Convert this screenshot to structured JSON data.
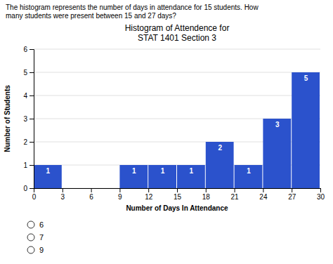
{
  "chart_data": {
    "type": "histogram",
    "title": "Histogram of Attendence for\nSTAT 1401 Section 3",
    "x_label": "Number of Days In Attendance",
    "y_label": "Number of Students",
    "bins": [
      0,
      3,
      6,
      9,
      12,
      15,
      18,
      21,
      24,
      27,
      30
    ],
    "values": [
      1,
      0,
      0,
      1,
      1,
      1,
      2,
      1,
      3,
      5
    ],
    "color": "#2B52CC",
    "xlim": [
      0,
      30
    ],
    "xticks": [
      0,
      3,
      6,
      9,
      12,
      15,
      18,
      21,
      24,
      27,
      30
    ],
    "ylim": [
      0,
      6
    ],
    "yticks": [
      0,
      1,
      2,
      3,
      4,
      5,
      6
    ],
    "grid": true,
    "data_labels": true,
    "annotations": [
      [
        "The histogram represents the number of days in attendance for 15 students. How",
        "many students were present between 15 and 27 days?"
      ],
      [
        "6",
        "7",
        "9"
      ]
    ]
  }
}
